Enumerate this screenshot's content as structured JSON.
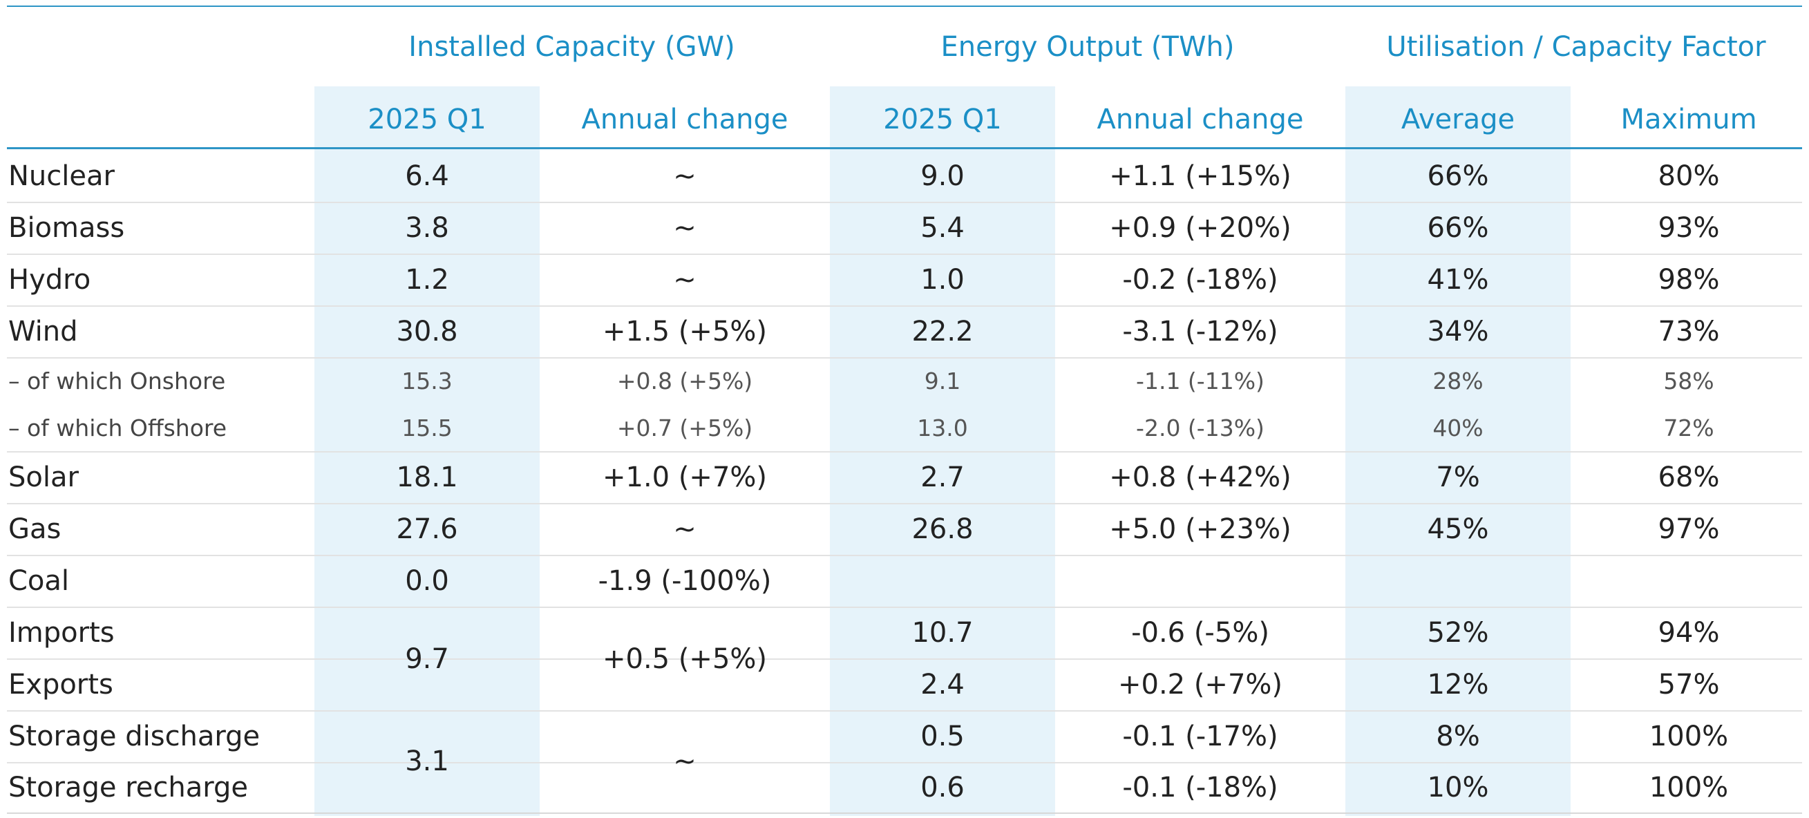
{
  "headers": {
    "groups": [
      "Installed Capacity (GW)",
      "Energy Output (TWh)",
      "Utilisation / Capacity Factor"
    ],
    "sub": [
      "2025 Q1",
      "Annual change",
      "2025 Q1",
      "Annual change",
      "Average",
      "Maximum"
    ]
  },
  "colors": {
    "accent": "#1b8fc6",
    "band": "#e6f3fa",
    "rule": "#e2e2e2",
    "text": "#222222"
  },
  "rows": [
    {
      "label": "Nuclear",
      "cap": "6.4",
      "cap_change": "~",
      "out": "9.0",
      "out_change": "+1.1 (+15%)",
      "avg": "66%",
      "max": "80%"
    },
    {
      "label": "Biomass",
      "cap": "3.8",
      "cap_change": "~",
      "out": "5.4",
      "out_change": "+0.9 (+20%)",
      "avg": "66%",
      "max": "93%"
    },
    {
      "label": "Hydro",
      "cap": "1.2",
      "cap_change": "~",
      "out": "1.0",
      "out_change": "-0.2 (-18%)",
      "avg": "41%",
      "max": "98%"
    },
    {
      "label": "Wind",
      "cap": "30.8",
      "cap_change": "+1.5 (+5%)",
      "out": "22.2",
      "out_change": "-3.1 (-12%)",
      "avg": "34%",
      "max": "73%"
    },
    {
      "label": "– of which Onshore",
      "cap": "15.3",
      "cap_change": "+0.8 (+5%)",
      "out": "9.1",
      "out_change": "-1.1 (-11%)",
      "avg": "28%",
      "max": "58%"
    },
    {
      "label": "– of which Offshore",
      "cap": "15.5",
      "cap_change": "+0.7 (+5%)",
      "out": "13.0",
      "out_change": "-2.0 (-13%)",
      "avg": "40%",
      "max": "72%"
    },
    {
      "label": "Solar",
      "cap": "18.1",
      "cap_change": "+1.0 (+7%)",
      "out": "2.7",
      "out_change": "+0.8 (+42%)",
      "avg": "7%",
      "max": "68%"
    },
    {
      "label": "Gas",
      "cap": "27.6",
      "cap_change": "~",
      "out": "26.8",
      "out_change": "+5.0 (+23%)",
      "avg": "45%",
      "max": "97%"
    },
    {
      "label": "Coal",
      "cap": "0.0",
      "cap_change": "-1.9 (-100%)",
      "out": "",
      "out_change": "",
      "avg": "",
      "max": ""
    },
    {
      "label": "Imports",
      "cap": "9.7",
      "cap_change": "+0.5 (+5%)",
      "out": "10.7",
      "out_change": "-0.6 (-5%)",
      "avg": "52%",
      "max": "94%"
    },
    {
      "label": "Exports",
      "cap": "",
      "cap_change": "",
      "out": "2.4",
      "out_change": "+0.2 (+7%)",
      "avg": "12%",
      "max": "57%"
    },
    {
      "label": "Storage discharge",
      "cap": "3.1",
      "cap_change": "~",
      "out": "0.5",
      "out_change": "-0.1 (-17%)",
      "avg": "8%",
      "max": "100%"
    },
    {
      "label": "Storage recharge",
      "cap": "",
      "cap_change": "",
      "out": "0.6",
      "out_change": "-0.1 (-18%)",
      "avg": "10%",
      "max": "100%"
    }
  ]
}
